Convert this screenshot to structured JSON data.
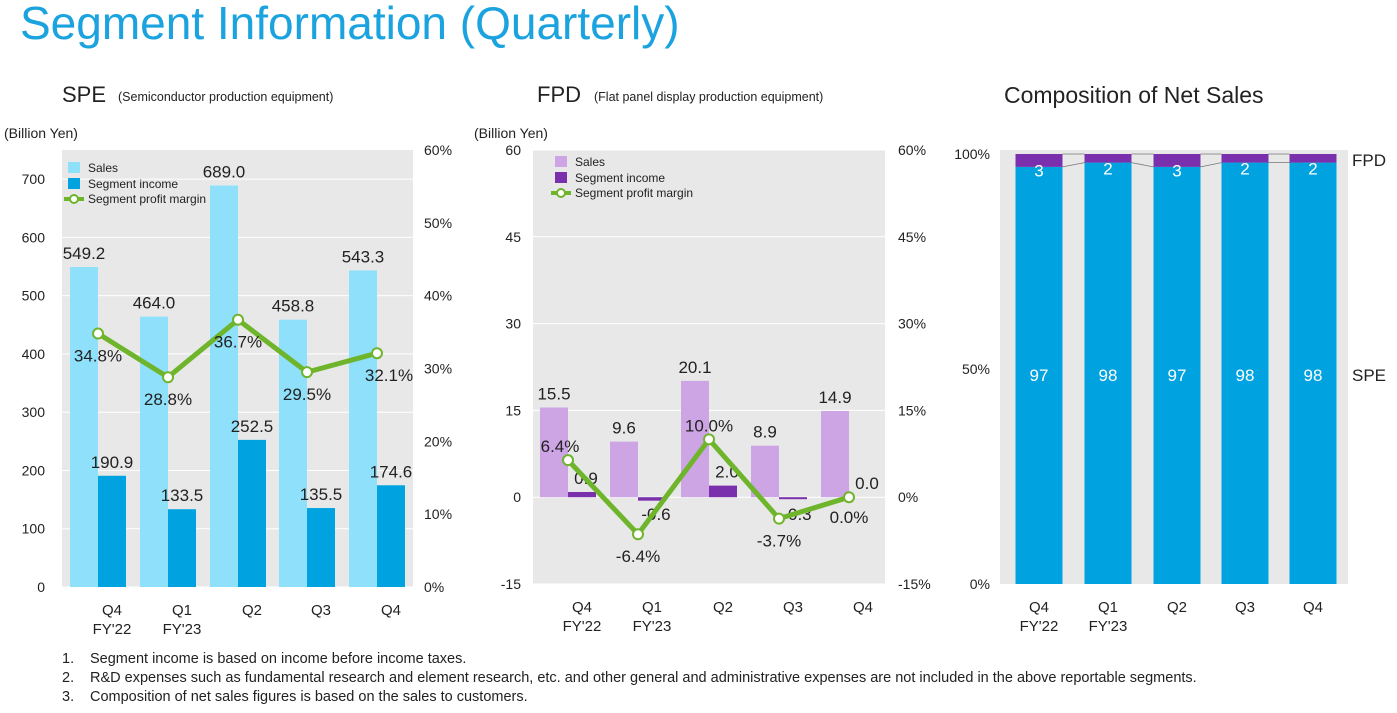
{
  "title": "Segment Information (Quarterly)",
  "footnotes": [
    {
      "num": "1.",
      "text": "Segment income is based on income before income taxes."
    },
    {
      "num": "2.",
      "text": "R&D expenses such as fundamental research and element research, etc. and other general and administrative expenses are not included in the above reportable segments."
    },
    {
      "num": "3.",
      "text": "Composition of net sales figures is based on the sales to customers."
    }
  ],
  "colors": {
    "title": "#1aa3df",
    "plot_bg": "#e8e8e8",
    "spe_sales": "#8ee0fb",
    "spe_income": "#00a3e0",
    "fpd_sales": "#cda4e4",
    "fpd_income": "#7a2fad",
    "margin_line": "#6fb52c",
    "comp_spe": "#00a3e0",
    "comp_fpd": "#7a2fad"
  },
  "chart_data": [
    {
      "id": "spe",
      "type": "bar",
      "title": "SPE",
      "subtitle": "(Semiconductor production equipment)",
      "unit_label": "(Billion Yen)",
      "categories": [
        [
          "Q4",
          "FY'22"
        ],
        [
          "Q1",
          "FY'23"
        ],
        [
          "Q2",
          ""
        ],
        [
          "Q3",
          ""
        ],
        [
          "Q4",
          ""
        ]
      ],
      "left_axis": {
        "min": 0,
        "max": 750,
        "ticks": [
          0,
          100,
          200,
          300,
          400,
          500,
          600,
          700
        ]
      },
      "right_axis": {
        "min": 0,
        "max": 60,
        "ticks": [
          0,
          10,
          20,
          30,
          40,
          50,
          60
        ],
        "suffix": "%"
      },
      "series": [
        {
          "name": "Sales",
          "kind": "bar",
          "values": [
            549.2,
            464.0,
            689.0,
            458.8,
            543.3
          ],
          "labels": [
            "549.2",
            "464.0",
            "689.0",
            "458.8",
            "543.3"
          ]
        },
        {
          "name": "Segment income",
          "kind": "bar",
          "values": [
            190.9,
            133.5,
            252.5,
            135.5,
            174.6
          ],
          "labels": [
            "190.9",
            "133.5",
            "252.5",
            "135.5",
            "174.6"
          ]
        },
        {
          "name": "Segment profit margin",
          "kind": "line",
          "axis": "right",
          "values": [
            34.8,
            28.8,
            36.7,
            29.5,
            32.1
          ],
          "labels": [
            "34.8%",
            "28.8%",
            "36.7%",
            "29.5%",
            "32.1%"
          ]
        }
      ],
      "legend": "top-left",
      "grid": true
    },
    {
      "id": "fpd",
      "type": "bar",
      "title": "FPD",
      "subtitle": "(Flat panel display production equipment)",
      "unit_label": "(Billion Yen)",
      "categories": [
        [
          "Q4",
          "FY'22"
        ],
        [
          "Q1",
          "FY'23"
        ],
        [
          "Q2",
          ""
        ],
        [
          "Q3",
          ""
        ],
        [
          "Q4",
          ""
        ]
      ],
      "left_axis": {
        "min": -15,
        "max": 60,
        "ticks": [
          -15,
          0,
          15,
          30,
          45,
          60
        ]
      },
      "right_axis": {
        "min": -15,
        "max": 60,
        "ticks": [
          -15,
          0,
          15,
          30,
          45,
          60
        ],
        "suffix": "%"
      },
      "series": [
        {
          "name": "Sales",
          "kind": "bar",
          "values": [
            15.5,
            9.6,
            20.1,
            8.9,
            14.9
          ],
          "labels": [
            "15.5",
            "9.6",
            "20.1",
            "8.9",
            "14.9"
          ]
        },
        {
          "name": "Segment income",
          "kind": "bar",
          "values": [
            0.9,
            -0.6,
            2.0,
            -0.3,
            0.0
          ],
          "labels": [
            "0.9",
            "-0.6",
            "2.0",
            "-0.3",
            "0.0"
          ]
        },
        {
          "name": "Segment profit margin",
          "kind": "line",
          "axis": "right",
          "values": [
            6.4,
            -6.4,
            10.0,
            -3.7,
            0.0
          ],
          "labels": [
            "6.4%",
            "-6.4%",
            "10.0%",
            "-3.7%",
            "0.0%"
          ]
        }
      ],
      "legend": "top-left",
      "grid": true
    },
    {
      "id": "composition",
      "type": "bar",
      "stacked": true,
      "title": "Composition of Net Sales",
      "categories": [
        [
          "Q4",
          "FY'22"
        ],
        [
          "Q1",
          "FY'23"
        ],
        [
          "Q2",
          ""
        ],
        [
          "Q3",
          ""
        ],
        [
          "Q4",
          ""
        ]
      ],
      "axis": {
        "min": 0,
        "max": 100,
        "ticks": [
          0,
          50,
          100
        ],
        "suffix": "%"
      },
      "series": [
        {
          "name": "SPE",
          "values": [
            97,
            98,
            97,
            98,
            98
          ]
        },
        {
          "name": "FPD",
          "values": [
            3,
            2,
            3,
            2,
            2
          ]
        }
      ],
      "legend": "right"
    }
  ]
}
